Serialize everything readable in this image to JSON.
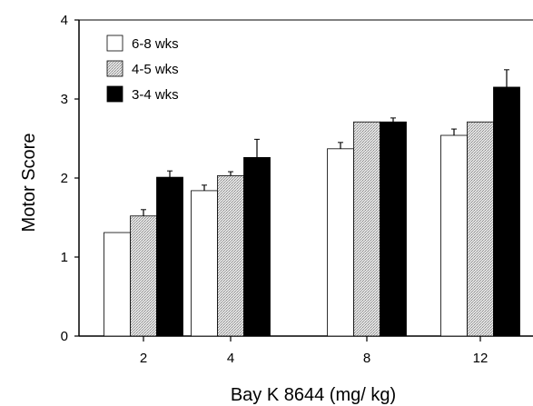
{
  "chart_data": {
    "type": "bar",
    "title": "",
    "xlabel": "Bay K 8644 (mg/ kg)",
    "ylabel": "Motor Score",
    "categories": [
      "2",
      "4",
      "8",
      "12"
    ],
    "ylim": [
      0,
      4
    ],
    "yticks": [
      "0",
      "1",
      "2",
      "3",
      "4"
    ],
    "legend_position": "top-left",
    "grid": false,
    "series": [
      {
        "name": "6-8 wks",
        "fill": "white",
        "color": "#ffffff",
        "values": [
          1.31,
          1.84,
          2.37,
          2.54
        ],
        "errors": [
          0,
          0.07,
          0.08,
          0.08
        ]
      },
      {
        "name": "4-5 wks",
        "fill": "stippled",
        "color": "#d4d4d4",
        "values": [
          1.52,
          2.03,
          2.71,
          2.71
        ],
        "errors": [
          0.08,
          0.05,
          0,
          0
        ]
      },
      {
        "name": "3-4 wks",
        "fill": "black",
        "color": "#000000",
        "values": [
          2.01,
          2.26,
          2.71,
          3.15
        ],
        "errors": [
          0.08,
          0.23,
          0.05,
          0.22
        ]
      }
    ]
  }
}
